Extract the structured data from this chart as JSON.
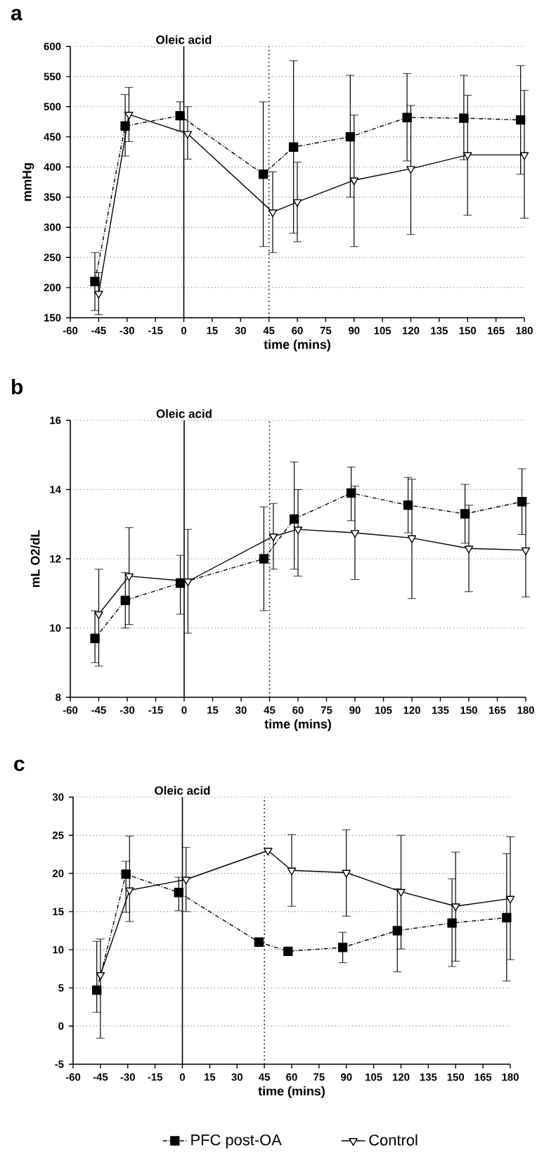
{
  "chart_data": [
    {
      "type": "line",
      "title": "a",
      "xlabel": "time (mins)",
      "ylabel": "mmHg",
      "xlim": [
        -60,
        180
      ],
      "xticks": [
        -60,
        -45,
        -30,
        -15,
        0,
        15,
        30,
        45,
        60,
        75,
        90,
        105,
        120,
        135,
        150,
        165,
        180
      ],
      "ylim": [
        150,
        600
      ],
      "yticks": [
        150,
        200,
        250,
        300,
        350,
        400,
        450,
        500,
        550,
        600
      ],
      "grid": "y",
      "ref_lines": [
        {
          "axis": "x",
          "value": 0,
          "label": "Oleic acid",
          "line_style": "solid"
        },
        {
          "axis": "x",
          "value": 45,
          "line_style": "dotted"
        }
      ],
      "series": [
        {
          "color": "#000000",
          "marker": "square",
          "line_style": "dashed",
          "x": [
            -47,
            -31,
            -2,
            42,
            58,
            88,
            118,
            148,
            178
          ],
          "values": [
            210,
            468,
            485,
            388,
            433,
            450,
            482,
            481,
            478
          ],
          "errors": [
            [
              162,
              258
            ],
            [
              418,
              520
            ],
            [
              460,
              508
            ],
            [
              268,
              508
            ],
            [
              290,
              576
            ],
            [
              350,
              552
            ],
            [
              410,
              555
            ],
            [
              412,
              552
            ],
            [
              388,
              568
            ]
          ]
        },
        {
          "color": "#000000",
          "marker": "triangle",
          "line_style": "solid",
          "x": [
            -45,
            -29,
            2,
            47,
            60,
            90,
            120,
            150,
            180
          ],
          "values": [
            190,
            487,
            455,
            325,
            342,
            378,
            397,
            420,
            420
          ],
          "errors": [
            [
              155,
              225
            ],
            [
              442,
              532
            ],
            [
              413,
              500
            ],
            [
              258,
              392
            ],
            [
              276,
              408
            ],
            [
              268,
              486
            ],
            [
              288,
              502
            ],
            [
              320,
              519
            ],
            [
              315,
              527
            ]
          ]
        }
      ]
    },
    {
      "type": "line",
      "title": "b",
      "xlabel": "time (mins)",
      "ylabel": "mL O2/dL",
      "xlim": [
        -60,
        180
      ],
      "xticks": [
        -60,
        -45,
        -30,
        -15,
        0,
        15,
        30,
        45,
        60,
        75,
        90,
        105,
        120,
        135,
        150,
        165,
        180
      ],
      "ylim": [
        8,
        16
      ],
      "yticks": [
        8,
        10,
        12,
        14,
        16
      ],
      "grid": "y",
      "ref_lines": [
        {
          "axis": "x",
          "value": 0,
          "label": "Oleic acid",
          "line_style": "solid"
        },
        {
          "axis": "x",
          "value": 45,
          "line_style": "dotted"
        }
      ],
      "series": [
        {
          "color": "#000000",
          "marker": "square",
          "line_style": "dashed",
          "x": [
            -47,
            -31,
            -2,
            42,
            58,
            88,
            118,
            148,
            178
          ],
          "values": [
            9.7,
            10.8,
            11.3,
            12.0,
            13.15,
            13.9,
            13.55,
            13.3,
            13.65
          ],
          "errors": [
            [
              9.0,
              10.5
            ],
            [
              10.0,
              11.6
            ],
            [
              10.4,
              12.1
            ],
            [
              10.5,
              13.5
            ],
            [
              11.7,
              14.8
            ],
            [
              13.1,
              14.65
            ],
            [
              12.75,
              14.35
            ],
            [
              12.45,
              14.15
            ],
            [
              12.7,
              14.6
            ]
          ]
        },
        {
          "color": "#000000",
          "marker": "triangle",
          "line_style": "solid",
          "x": [
            -45,
            -29,
            2,
            47,
            60,
            90,
            120,
            150,
            180
          ],
          "values": [
            10.4,
            11.5,
            11.35,
            12.65,
            12.85,
            12.75,
            12.6,
            12.3,
            12.25
          ],
          "errors": [
            [
              8.9,
              11.7
            ],
            [
              10.1,
              12.9
            ],
            [
              9.85,
              12.85
            ],
            [
              11.7,
              13.6
            ],
            [
              11.5,
              14.0
            ],
            [
              11.4,
              14.1
            ],
            [
              10.85,
              14.3
            ],
            [
              11.05,
              13.55
            ],
            [
              10.9,
              13.6
            ]
          ]
        }
      ]
    },
    {
      "type": "line",
      "title": "c",
      "xlabel": "time (mins)",
      "xlim": [
        -60,
        180
      ],
      "xticks": [
        -60,
        -45,
        -30,
        -15,
        0,
        15,
        30,
        45,
        60,
        75,
        90,
        105,
        120,
        135,
        150,
        165,
        180
      ],
      "ylim": [
        -5,
        30
      ],
      "yticks": [
        -5,
        0,
        5,
        10,
        15,
        20,
        25,
        30
      ],
      "grid": "y",
      "legend": "bottom",
      "ref_lines": [
        {
          "axis": "x",
          "value": 0,
          "label": "Oleic acid",
          "line_style": "solid"
        },
        {
          "axis": "x",
          "value": 45,
          "line_style": "dotted"
        }
      ],
      "series": [
        {
          "name": "PFC post-OA",
          "color": "#000000",
          "marker": "square",
          "line_style": "dashed",
          "x": [
            -47,
            -31,
            -2,
            42,
            58,
            88,
            118,
            148,
            178
          ],
          "values": [
            4.7,
            19.9,
            17.5,
            11.0,
            9.8,
            10.3,
            12.5,
            13.5,
            14.2
          ],
          "errors": [
            [
              1.8,
              11.1
            ],
            [
              14.9,
              21.6
            ],
            [
              15.1,
              19.5
            ],
            null,
            null,
            [
              8.3,
              12.3
            ],
            [
              7.1,
              18.0
            ],
            [
              7.8,
              19.3
            ],
            [
              5.9,
              22.6
            ]
          ]
        },
        {
          "name": "Control",
          "color": "#000000",
          "marker": "triangle",
          "line_style": "solid",
          "x": [
            -45,
            -29,
            2,
            47,
            60,
            90,
            120,
            150,
            180
          ],
          "values": [
            6.7,
            17.8,
            19.2,
            23.0,
            20.4,
            20.1,
            17.6,
            15.7,
            16.7
          ],
          "errors": [
            [
              -1.6,
              11.4
            ],
            [
              13.7,
              24.9
            ],
            [
              15.0,
              23.4
            ],
            null,
            [
              15.7,
              25.1
            ],
            [
              14.4,
              25.7
            ],
            [
              10.1,
              25.0
            ],
            [
              8.5,
              22.8
            ],
            [
              8.7,
              24.8
            ]
          ]
        }
      ]
    }
  ]
}
